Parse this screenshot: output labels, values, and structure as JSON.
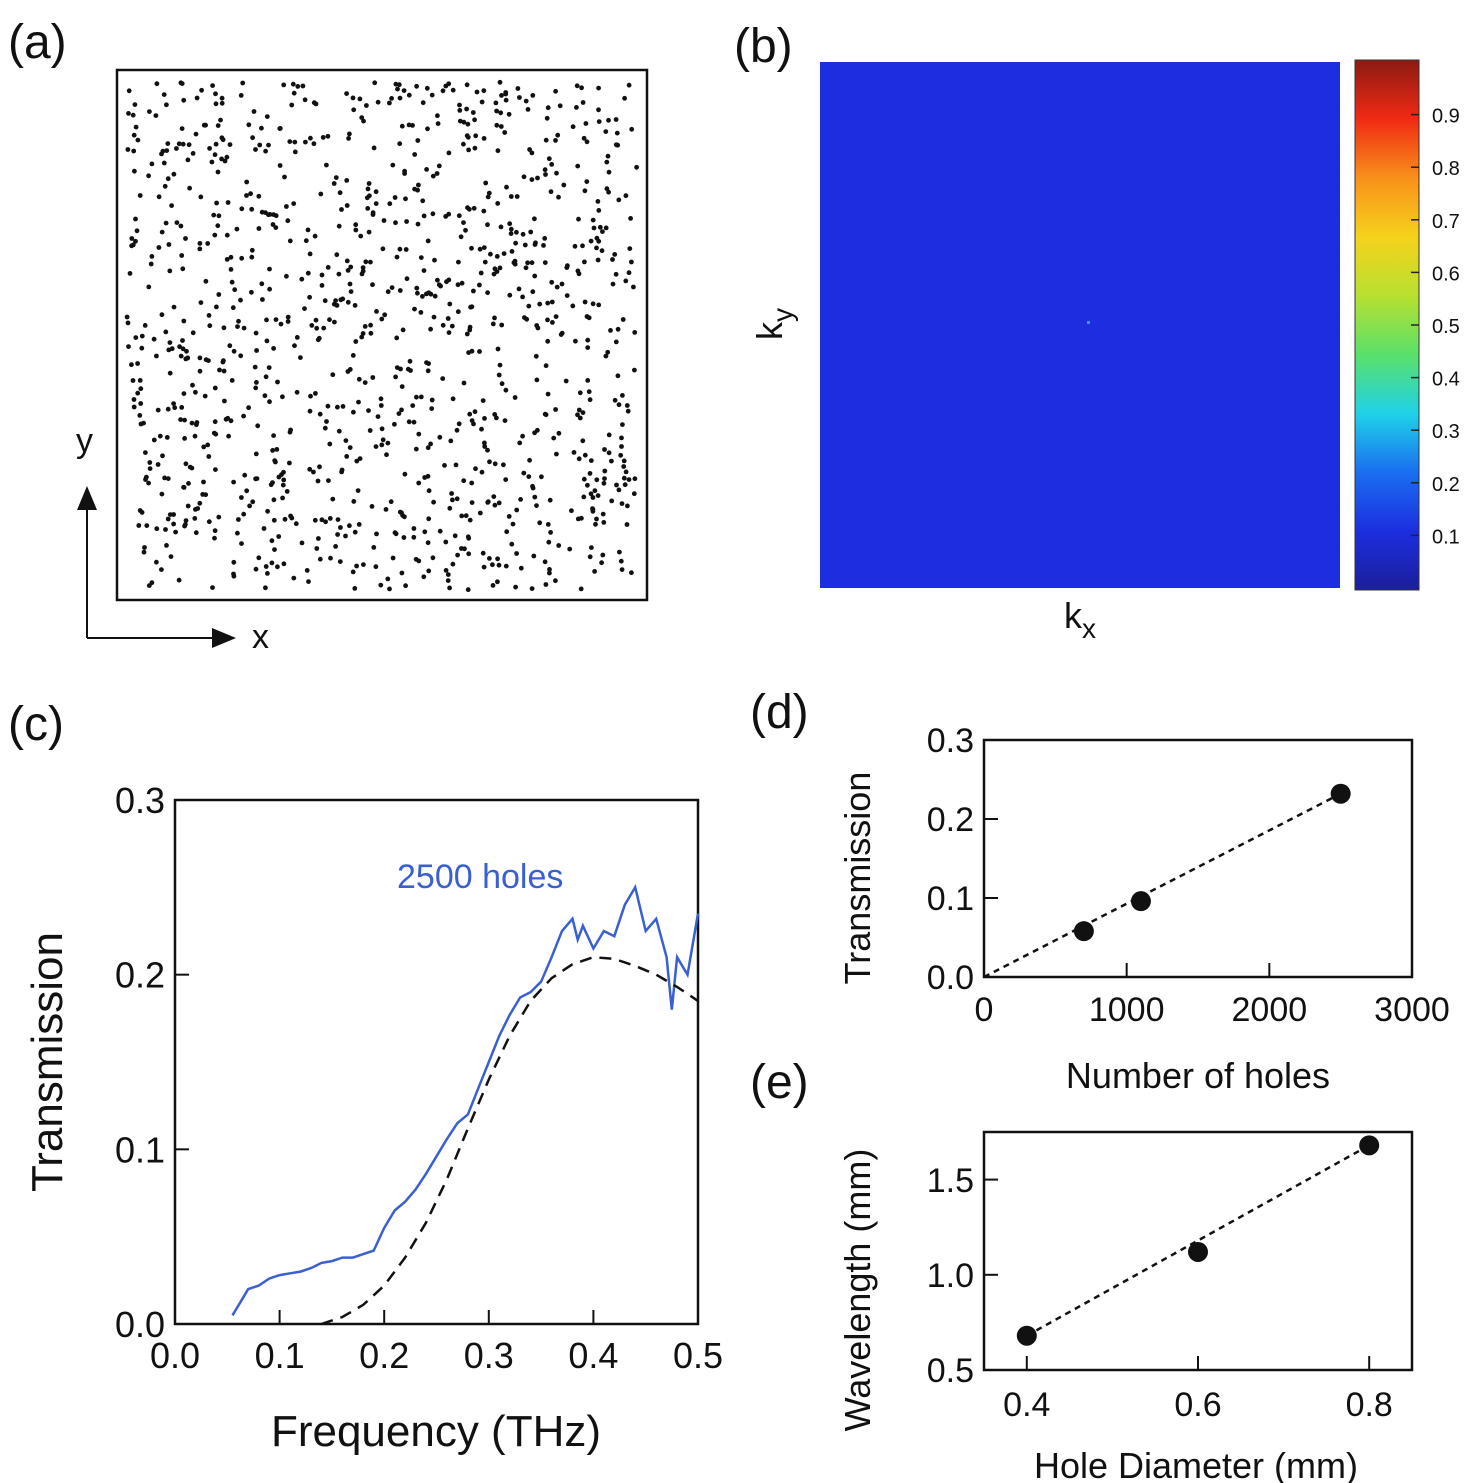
{
  "panels": {
    "a": {
      "label": "(a)",
      "x_axis_label": "x",
      "y_axis_label": "y"
    },
    "b": {
      "label": "(b)",
      "x_axis_label": "k",
      "x_axis_sub": "x",
      "y_axis_label": "k",
      "y_axis_sub": "y"
    },
    "c": {
      "label": "(c)"
    },
    "d": {
      "label": "(d)"
    },
    "e": {
      "label": "(e)"
    }
  },
  "chart_data": [
    {
      "panel": "a",
      "type": "scatter",
      "description_hidden": "",
      "point_count": 1100,
      "random_seed": 12345,
      "xlim": [
        0,
        1
      ],
      "ylim": [
        0,
        1
      ],
      "marker_color": "#111111"
    },
    {
      "panel": "b",
      "type": "heatmap",
      "field_color": "#1c2ee0",
      "colorbar": {
        "ticks": [
          0.1,
          0.2,
          0.3,
          0.4,
          0.5,
          0.6,
          0.7,
          0.8,
          0.9
        ],
        "tick_labels": [
          "0.1",
          "0.2",
          "0.3",
          "0.4",
          "0.5",
          "0.6",
          "0.7",
          "0.8",
          "0.9"
        ],
        "range": [
          0,
          1
        ],
        "colormap": [
          "#1b1f9a",
          "#1c2ee0",
          "#1a6ff0",
          "#1fd2e8",
          "#5ae06a",
          "#b8e030",
          "#f6d21c",
          "#f8901a",
          "#f02a14",
          "#8c1a12"
        ]
      }
    },
    {
      "panel": "c",
      "type": "line",
      "xlabel": "Frequency (THz)",
      "ylabel": "Transmission",
      "xlim": [
        0,
        0.5
      ],
      "ylim": [
        0,
        0.3
      ],
      "xticks": [
        0.0,
        0.1,
        0.2,
        0.3,
        0.4,
        0.5
      ],
      "xtick_labels": [
        "0.0",
        "0.1",
        "0.2",
        "0.3",
        "0.4",
        "0.5"
      ],
      "yticks": [
        0.0,
        0.1,
        0.2,
        0.3
      ],
      "ytick_labels": [
        "0.0",
        "0.1",
        "0.2",
        "0.3"
      ],
      "annotation": "2500 holes",
      "series": [
        {
          "name": "2500 holes",
          "color": "#3a5fd0",
          "style": "solid",
          "x": [
            0.055,
            0.06,
            0.065,
            0.07,
            0.08,
            0.09,
            0.1,
            0.11,
            0.12,
            0.13,
            0.14,
            0.15,
            0.16,
            0.17,
            0.18,
            0.19,
            0.2,
            0.21,
            0.22,
            0.23,
            0.24,
            0.25,
            0.26,
            0.27,
            0.28,
            0.29,
            0.3,
            0.31,
            0.32,
            0.33,
            0.34,
            0.35,
            0.36,
            0.37,
            0.38,
            0.385,
            0.39,
            0.4,
            0.41,
            0.42,
            0.43,
            0.44,
            0.45,
            0.46,
            0.47,
            0.475,
            0.48,
            0.49,
            0.5
          ],
          "y": [
            0.005,
            0.01,
            0.015,
            0.02,
            0.022,
            0.026,
            0.028,
            0.029,
            0.03,
            0.032,
            0.035,
            0.036,
            0.038,
            0.038,
            0.04,
            0.042,
            0.055,
            0.065,
            0.07,
            0.077,
            0.086,
            0.096,
            0.106,
            0.115,
            0.12,
            0.135,
            0.15,
            0.165,
            0.177,
            0.187,
            0.19,
            0.196,
            0.21,
            0.225,
            0.232,
            0.22,
            0.228,
            0.215,
            0.225,
            0.222,
            0.24,
            0.25,
            0.225,
            0.232,
            0.21,
            0.18,
            0.21,
            0.2,
            0.235
          ]
        },
        {
          "name": "",
          "color": "#111111",
          "style": "dashed",
          "x": [
            0.14,
            0.16,
            0.18,
            0.2,
            0.22,
            0.24,
            0.26,
            0.28,
            0.3,
            0.32,
            0.34,
            0.36,
            0.38,
            0.4,
            0.42,
            0.44,
            0.46,
            0.48,
            0.5
          ],
          "y": [
            0.0,
            0.004,
            0.011,
            0.022,
            0.038,
            0.058,
            0.083,
            0.112,
            0.14,
            0.165,
            0.185,
            0.198,
            0.206,
            0.21,
            0.209,
            0.205,
            0.2,
            0.193,
            0.185
          ]
        }
      ]
    },
    {
      "panel": "d",
      "type": "scatter",
      "xlabel": "Number of holes",
      "ylabel": "Transmission",
      "xlim": [
        0,
        3000
      ],
      "ylim": [
        0,
        0.3
      ],
      "xticks": [
        0,
        1000,
        2000,
        3000
      ],
      "xtick_labels": [
        "0",
        "1000",
        "2000",
        "3000"
      ],
      "yticks": [
        0.0,
        0.1,
        0.2,
        0.3
      ],
      "ytick_labels": [
        "0.0",
        "0.1",
        "0.2",
        "0.3"
      ],
      "series": [
        {
          "name": "",
          "x": [
            700,
            1100,
            2500
          ],
          "y": [
            0.058,
            0.096,
            0.232
          ]
        }
      ],
      "fit_line": {
        "x": [
          0,
          2500
        ],
        "y": [
          0.0,
          0.232
        ]
      }
    },
    {
      "panel": "e",
      "type": "scatter",
      "xlabel": "Hole Diameter (mm)",
      "ylabel": "Wavelength (mm)",
      "xlim": [
        0.35,
        0.85
      ],
      "ylim": [
        0.5,
        1.75
      ],
      "xticks": [
        0.4,
        0.6,
        0.8
      ],
      "xtick_labels": [
        "0.4",
        "0.6",
        "0.8"
      ],
      "yticks": [
        0.5,
        1.0,
        1.5
      ],
      "ytick_labels": [
        "0.5",
        "1.0",
        "1.5"
      ],
      "series": [
        {
          "name": "",
          "x": [
            0.4,
            0.6,
            0.8
          ],
          "y": [
            0.68,
            1.12,
            1.68
          ]
        }
      ],
      "fit_line": {
        "x": [
          0.4,
          0.8
        ],
        "y": [
          0.68,
          1.68
        ]
      }
    }
  ]
}
